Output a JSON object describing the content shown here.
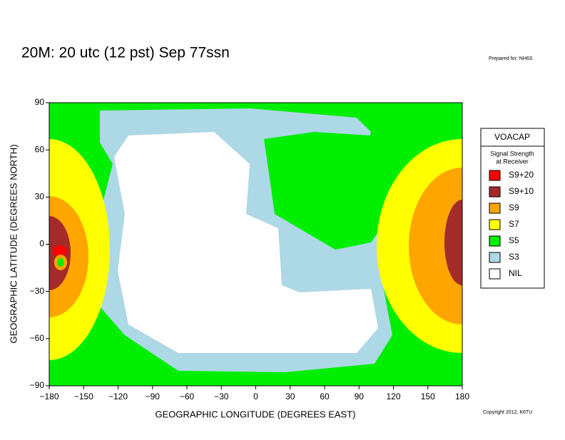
{
  "header": {
    "title": "20M:  20 utc (12 pst) Sep 77ssn",
    "prepared": "Prepared for: NH6S",
    "copyright": "Copyright 2012, K6TU"
  },
  "map": {
    "xlabel": "GEOGRAPHIC LONGITUDE (DEGREES EAST)",
    "ylabel": "GEOGRAPHIC LATITUDE (DEGREES NORTH)",
    "xlim": [
      -180,
      180
    ],
    "ylim": [
      -90,
      90
    ],
    "xticks": [
      {
        "value": -180,
        "label": "−180"
      },
      {
        "value": -150,
        "label": "−150"
      },
      {
        "value": -120,
        "label": "−120"
      },
      {
        "value": -90,
        "label": "−90"
      },
      {
        "value": -60,
        "label": "−60"
      },
      {
        "value": -30,
        "label": "−30"
      },
      0,
      30,
      60,
      90,
      120,
      150,
      180
    ],
    "yticks": [
      {
        "value": -90,
        "label": "−90"
      },
      {
        "value": -60,
        "label": "−60"
      },
      {
        "value": -30,
        "label": "−30"
      },
      0,
      30,
      60,
      90
    ]
  },
  "legend": {
    "title": "VOACAP",
    "subtitle": [
      "Signal Strength",
      "at Receiver"
    ],
    "items": [
      {
        "label": "S9+20",
        "color": "#ff0000"
      },
      {
        "label": "S9+10",
        "color": "#a52a2a"
      },
      {
        "label": "S9",
        "color": "#ffa500"
      },
      {
        "label": "S7",
        "color": "#ffff00"
      },
      {
        "label": "S5",
        "color": "#00ee00"
      },
      {
        "label": "S3",
        "color": "#add8e6"
      },
      {
        "label": "NIL",
        "color": "#ffffff"
      }
    ]
  }
}
